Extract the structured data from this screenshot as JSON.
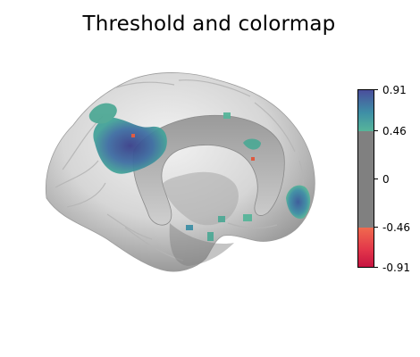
{
  "figure": {
    "title": "Threshold and colormap"
  },
  "colorbar": {
    "ticks": [
      "0.91",
      "0.46",
      "0",
      "-0.46",
      "-0.91"
    ],
    "range": [
      -0.91,
      0.91
    ],
    "threshold": 0.46,
    "colors": {
      "top": "#4a4f9c",
      "upper_mid": "#3e8fa6",
      "threshold_low": "#57b59a",
      "gray": "#808080",
      "neg_low": "#f06a4e",
      "bottom": "#c41140"
    }
  },
  "image": {
    "subject": "brain-surface-medial-view",
    "surface_color": "#d9d9d9",
    "overlay_colors": [
      "#4a4f9c",
      "#3e8fa6",
      "#57b59a",
      "#e1553a"
    ]
  }
}
